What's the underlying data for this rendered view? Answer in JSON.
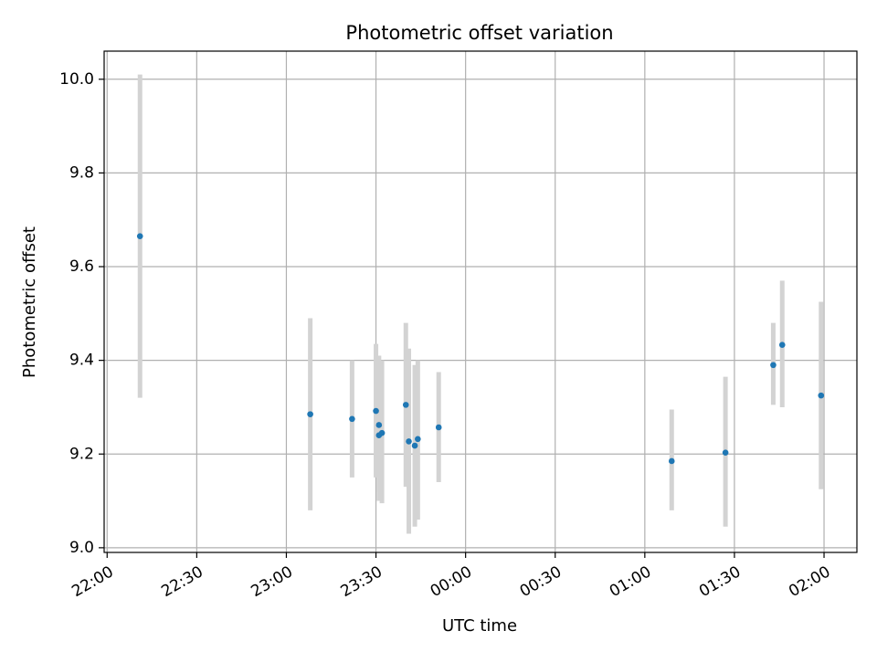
{
  "chart_data": {
    "type": "scatter",
    "title": "Photometric offset variation",
    "xlabel": "UTC time",
    "ylabel": "Photometric offset",
    "x_unit": "UTC time (HH:MM), points after midnight continue into the next day",
    "xlim": [
      "21:59",
      "02:11"
    ],
    "ylim": [
      8.99,
      10.06
    ],
    "x_ticks": [
      "22:00",
      "22:30",
      "23:00",
      "23:30",
      "00:00",
      "00:30",
      "01:00",
      "01:30",
      "02:00"
    ],
    "y_ticks": [
      9.0,
      9.2,
      9.4,
      9.6,
      9.8,
      10.0
    ],
    "y_tick_labels": [
      "9.0",
      "9.2",
      "9.4",
      "9.6",
      "9.8",
      "10.0"
    ],
    "grid": true,
    "error_bars": true,
    "colors": {
      "point": "#1f77b4",
      "error_bar": "#d3d3d3",
      "grid": "#b0b0b0"
    },
    "points": [
      {
        "x": "22:11",
        "y": 9.665,
        "ylo": 9.32,
        "yhi": 10.01
      },
      {
        "x": "23:08",
        "y": 9.285,
        "ylo": 9.08,
        "yhi": 9.49
      },
      {
        "x": "23:22",
        "y": 9.275,
        "ylo": 9.15,
        "yhi": 9.4
      },
      {
        "x": "23:30",
        "y": 9.292,
        "ylo": 9.15,
        "yhi": 9.435
      },
      {
        "x": "23:31",
        "y": 9.24,
        "ylo": 9.1,
        "yhi": 9.38
      },
      {
        "x": "23:31",
        "y": 9.262,
        "ylo": 9.12,
        "yhi": 9.41
      },
      {
        "x": "23:32",
        "y": 9.245,
        "ylo": 9.095,
        "yhi": 9.4
      },
      {
        "x": "23:40",
        "y": 9.305,
        "ylo": 9.13,
        "yhi": 9.48
      },
      {
        "x": "23:41",
        "y": 9.227,
        "ylo": 9.03,
        "yhi": 9.425
      },
      {
        "x": "23:43",
        "y": 9.218,
        "ylo": 9.045,
        "yhi": 9.39
      },
      {
        "x": "23:44",
        "y": 9.232,
        "ylo": 9.06,
        "yhi": 9.4
      },
      {
        "x": "23:51",
        "y": 9.257,
        "ylo": 9.14,
        "yhi": 9.375
      },
      {
        "x": "01:09",
        "y": 9.185,
        "ylo": 9.08,
        "yhi": 9.295
      },
      {
        "x": "01:27",
        "y": 9.203,
        "ylo": 9.045,
        "yhi": 9.365
      },
      {
        "x": "01:43",
        "y": 9.39,
        "ylo": 9.305,
        "yhi": 9.48
      },
      {
        "x": "01:46",
        "y": 9.433,
        "ylo": 9.3,
        "yhi": 9.57
      },
      {
        "x": "01:59",
        "y": 9.325,
        "ylo": 9.125,
        "yhi": 9.525
      }
    ]
  }
}
